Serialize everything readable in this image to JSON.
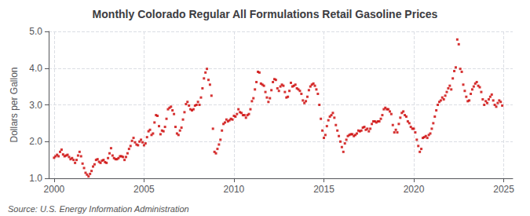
{
  "chart_data": {
    "type": "scatter",
    "title": "Monthly Colorado Regular All Formulations Retail Gasoline Prices",
    "ylabel": "Dollars per Gallon",
    "annotation": "Source: U.S. Energy Information Administration",
    "color": "#cc0000",
    "marker": "square",
    "grid": true,
    "xlim": [
      1999.7,
      2025.5
    ],
    "ylim": [
      1.0,
      5.0
    ],
    "xticks": [
      2000,
      2005,
      2010,
      2015,
      2020,
      2025
    ],
    "yticks": [
      {
        "value": 1.0,
        "label": "1.0"
      },
      {
        "value": 2.0,
        "label": "2.0"
      },
      {
        "value": 3.0,
        "label": "3.0"
      },
      {
        "value": 4.0,
        "label": "4.0"
      },
      {
        "value": 5.0,
        "label": "5.0"
      }
    ],
    "x": [
      2000.0,
      2000.083,
      2000.167,
      2000.25,
      2000.333,
      2000.417,
      2000.5,
      2000.583,
      2000.667,
      2000.75,
      2000.833,
      2000.917,
      2001.0,
      2001.083,
      2001.167,
      2001.25,
      2001.333,
      2001.417,
      2001.5,
      2001.583,
      2001.667,
      2001.75,
      2001.833,
      2001.917,
      2002.0,
      2002.083,
      2002.167,
      2002.25,
      2002.333,
      2002.417,
      2002.5,
      2002.583,
      2002.667,
      2002.75,
      2002.833,
      2002.917,
      2003.0,
      2003.083,
      2003.167,
      2003.25,
      2003.333,
      2003.417,
      2003.5,
      2003.583,
      2003.667,
      2003.75,
      2003.833,
      2003.917,
      2004.0,
      2004.083,
      2004.167,
      2004.25,
      2004.333,
      2004.417,
      2004.5,
      2004.583,
      2004.667,
      2004.75,
      2004.833,
      2004.917,
      2005.0,
      2005.083,
      2005.167,
      2005.25,
      2005.333,
      2005.417,
      2005.5,
      2005.583,
      2005.667,
      2005.75,
      2005.833,
      2005.917,
      2006.0,
      2006.083,
      2006.167,
      2006.25,
      2006.333,
      2006.417,
      2006.5,
      2006.583,
      2006.667,
      2006.75,
      2006.833,
      2006.917,
      2007.0,
      2007.083,
      2007.167,
      2007.25,
      2007.333,
      2007.417,
      2007.5,
      2007.583,
      2007.667,
      2007.75,
      2007.833,
      2007.917,
      2008.0,
      2008.083,
      2008.167,
      2008.25,
      2008.333,
      2008.417,
      2008.5,
      2008.583,
      2008.667,
      2008.75,
      2008.833,
      2008.917,
      2009.0,
      2009.083,
      2009.167,
      2009.25,
      2009.333,
      2009.417,
      2009.5,
      2009.583,
      2009.667,
      2009.75,
      2009.833,
      2009.917,
      2010.0,
      2010.083,
      2010.167,
      2010.25,
      2010.333,
      2010.417,
      2010.5,
      2010.583,
      2010.667,
      2010.75,
      2010.833,
      2010.917,
      2011.0,
      2011.083,
      2011.167,
      2011.25,
      2011.333,
      2011.417,
      2011.5,
      2011.583,
      2011.667,
      2011.75,
      2011.833,
      2011.917,
      2012.0,
      2012.083,
      2012.167,
      2012.25,
      2012.333,
      2012.417,
      2012.5,
      2012.583,
      2012.667,
      2012.75,
      2012.833,
      2012.917,
      2013.0,
      2013.083,
      2013.167,
      2013.25,
      2013.333,
      2013.417,
      2013.5,
      2013.583,
      2013.667,
      2013.75,
      2013.833,
      2013.917,
      2014.0,
      2014.083,
      2014.167,
      2014.25,
      2014.333,
      2014.417,
      2014.5,
      2014.583,
      2014.667,
      2014.75,
      2014.833,
      2014.917,
      2015.0,
      2015.083,
      2015.167,
      2015.25,
      2015.333,
      2015.417,
      2015.5,
      2015.583,
      2015.667,
      2015.75,
      2015.833,
      2015.917,
      2016.0,
      2016.083,
      2016.167,
      2016.25,
      2016.333,
      2016.417,
      2016.5,
      2016.583,
      2016.667,
      2016.75,
      2016.833,
      2016.917,
      2017.0,
      2017.083,
      2017.167,
      2017.25,
      2017.333,
      2017.417,
      2017.5,
      2017.583,
      2017.667,
      2017.75,
      2017.833,
      2017.917,
      2018.0,
      2018.083,
      2018.167,
      2018.25,
      2018.333,
      2018.417,
      2018.5,
      2018.583,
      2018.667,
      2018.75,
      2018.833,
      2018.917,
      2019.0,
      2019.083,
      2019.167,
      2019.25,
      2019.333,
      2019.417,
      2019.5,
      2019.583,
      2019.667,
      2019.75,
      2019.833,
      2019.917,
      2020.0,
      2020.083,
      2020.167,
      2020.25,
      2020.333,
      2020.417,
      2020.5,
      2020.583,
      2020.667,
      2020.75,
      2020.833,
      2020.917,
      2021.0,
      2021.083,
      2021.167,
      2021.25,
      2021.333,
      2021.417,
      2021.5,
      2021.583,
      2021.667,
      2021.75,
      2021.833,
      2021.917,
      2022.0,
      2022.083,
      2022.167,
      2022.25,
      2022.333,
      2022.417,
      2022.5,
      2022.583,
      2022.667,
      2022.75,
      2022.833,
      2022.917,
      2023.0,
      2023.083,
      2023.167,
      2023.25,
      2023.333,
      2023.417,
      2023.5,
      2023.583,
      2023.667,
      2023.75,
      2023.833,
      2023.917,
      2024.0,
      2024.083,
      2024.167,
      2024.25,
      2024.333,
      2024.417,
      2024.5,
      2024.583,
      2024.667,
      2024.75,
      2024.833,
      2024.917
    ],
    "values": [
      1.56,
      1.6,
      1.64,
      1.6,
      1.72,
      1.78,
      1.65,
      1.6,
      1.62,
      1.64,
      1.58,
      1.52,
      1.55,
      1.5,
      1.42,
      1.5,
      1.62,
      1.72,
      1.6,
      1.4,
      1.28,
      1.15,
      1.1,
      1.05,
      1.12,
      1.2,
      1.32,
      1.38,
      1.5,
      1.52,
      1.45,
      1.42,
      1.48,
      1.5,
      1.44,
      1.42,
      1.55,
      1.68,
      1.82,
      1.62,
      1.55,
      1.52,
      1.52,
      1.55,
      1.6,
      1.6,
      1.58,
      1.5,
      1.58,
      1.68,
      1.8,
      1.88,
      2.02,
      2.1,
      1.98,
      1.92,
      1.9,
      2.0,
      2.05,
      1.98,
      1.9,
      1.95,
      2.12,
      2.28,
      2.32,
      2.18,
      2.22,
      2.52,
      2.72,
      2.7,
      2.42,
      2.2,
      2.3,
      2.28,
      2.4,
      2.62,
      2.88,
      2.92,
      2.95,
      2.85,
      2.75,
      2.4,
      2.22,
      2.18,
      2.3,
      2.38,
      2.6,
      2.8,
      3.02,
      3.08,
      2.98,
      2.88,
      2.85,
      2.88,
      2.98,
      3.0,
      3.08,
      3.0,
      3.2,
      3.45,
      3.72,
      3.88,
      3.98,
      3.68,
      3.55,
      3.25,
      2.35,
      1.72,
      1.68,
      1.8,
      1.92,
      2.05,
      2.3,
      2.48,
      2.52,
      2.6,
      2.55,
      2.58,
      2.62,
      2.6,
      2.7,
      2.68,
      2.75,
      2.88,
      2.8,
      2.78,
      2.72,
      2.72,
      2.65,
      2.72,
      2.75,
      2.88,
      3.1,
      3.18,
      3.42,
      3.62,
      3.9,
      3.88,
      3.58,
      3.55,
      3.52,
      3.35,
      3.2,
      3.08,
      3.18,
      3.4,
      3.62,
      3.7,
      3.68,
      3.45,
      3.38,
      3.5,
      3.55,
      3.52,
      3.35,
      3.2,
      3.22,
      3.38,
      3.6,
      3.5,
      3.52,
      3.55,
      3.45,
      3.42,
      3.38,
      3.3,
      3.12,
      3.05,
      3.1,
      3.22,
      3.4,
      3.5,
      3.55,
      3.58,
      3.52,
      3.42,
      3.3,
      3.0,
      2.62,
      2.3,
      2.1,
      2.18,
      2.42,
      2.58,
      2.68,
      2.72,
      2.78,
      2.65,
      2.45,
      2.3,
      2.15,
      2.0,
      1.85,
      1.72,
      1.95,
      2.05,
      2.15,
      2.18,
      2.2,
      2.2,
      2.15,
      2.18,
      2.22,
      2.3,
      2.28,
      2.3,
      2.38,
      2.4,
      2.32,
      2.35,
      2.28,
      2.35,
      2.48,
      2.55,
      2.55,
      2.52,
      2.55,
      2.55,
      2.62,
      2.72,
      2.88,
      2.92,
      2.88,
      2.88,
      2.82,
      2.75,
      2.45,
      2.25,
      2.32,
      2.25,
      2.48,
      2.65,
      2.78,
      2.82,
      2.72,
      2.68,
      2.55,
      2.5,
      2.4,
      2.35,
      2.35,
      2.25,
      2.05,
      1.88,
      1.72,
      1.8,
      2.1,
      2.12,
      2.15,
      2.1,
      2.18,
      2.22,
      2.35,
      2.5,
      2.68,
      2.85,
      3.0,
      3.08,
      3.12,
      3.2,
      3.15,
      3.25,
      3.35,
      3.45,
      3.52,
      3.42,
      3.72,
      3.92,
      4.02,
      4.78,
      4.65,
      3.98,
      3.9,
      3.55,
      3.38,
      3.22,
      3.1,
      3.12,
      3.3,
      3.42,
      3.5,
      3.58,
      3.62,
      3.52,
      3.48,
      3.35,
      3.15,
      3.0,
      3.1,
      3.05,
      3.15,
      3.22,
      3.28,
      3.12,
      3.0,
      2.95,
      3.05,
      3.12,
      3.08,
      2.98
    ]
  }
}
